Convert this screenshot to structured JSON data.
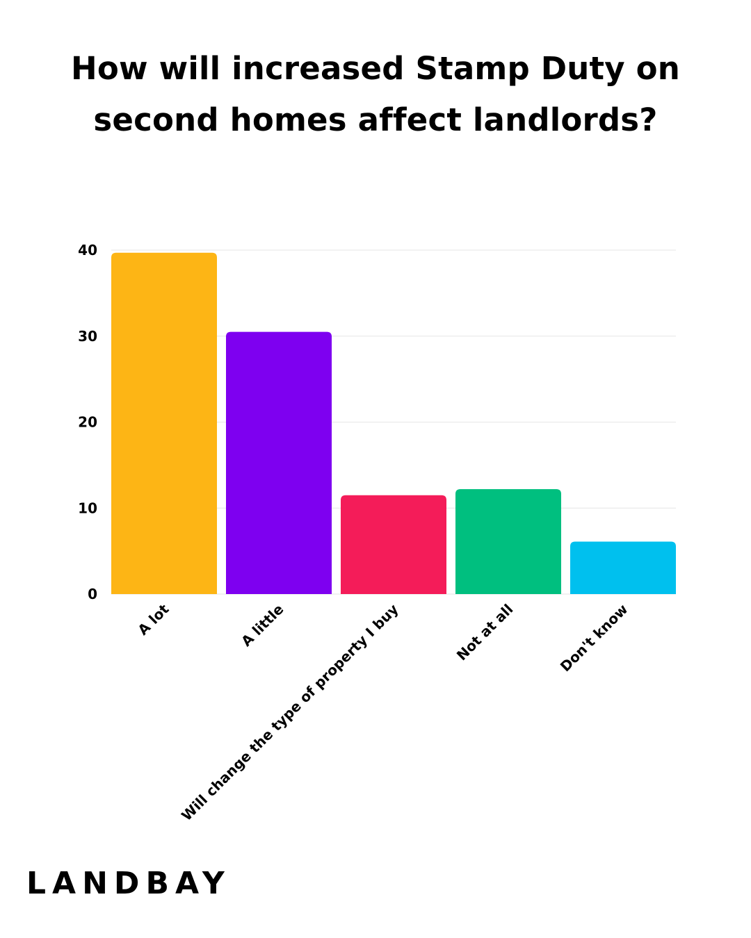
{
  "chart_data": {
    "type": "bar",
    "title_lines": [
      "How will increased Stamp Duty on",
      "second homes affect landlords?"
    ],
    "categories": [
      "A lot",
      "A little",
      "Will change the type of property I buy",
      "Not at all",
      "Don't know"
    ],
    "values": [
      39.7,
      30.5,
      11.5,
      12.2,
      6.1
    ],
    "colors": [
      "#FDB515",
      "#7E00F0",
      "#F41C59",
      "#00BF7F",
      "#00C0EE"
    ],
    "yticks": [
      "0",
      "10",
      "20",
      "30",
      "40"
    ],
    "ylim": [
      0,
      40
    ],
    "grid": true,
    "xlabel": "",
    "ylabel": ""
  },
  "brand": {
    "logo_text": "LANDBAY"
  }
}
